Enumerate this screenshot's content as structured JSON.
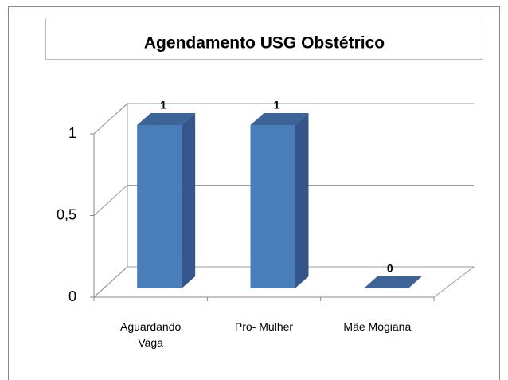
{
  "chart_data": {
    "type": "bar3d",
    "title": "Agendamento USG Obstétrico",
    "categories": [
      "Aguardando Vaga",
      "Pro- Mulher",
      "Mãe Mogiana"
    ],
    "values": [
      1,
      1,
      0
    ],
    "color": "#4a7ebb",
    "ylim": [
      0,
      1
    ],
    "yticks": [
      0,
      {
        "value": 0.5,
        "label": "0,5"
      },
      1
    ],
    "grid": true
  }
}
